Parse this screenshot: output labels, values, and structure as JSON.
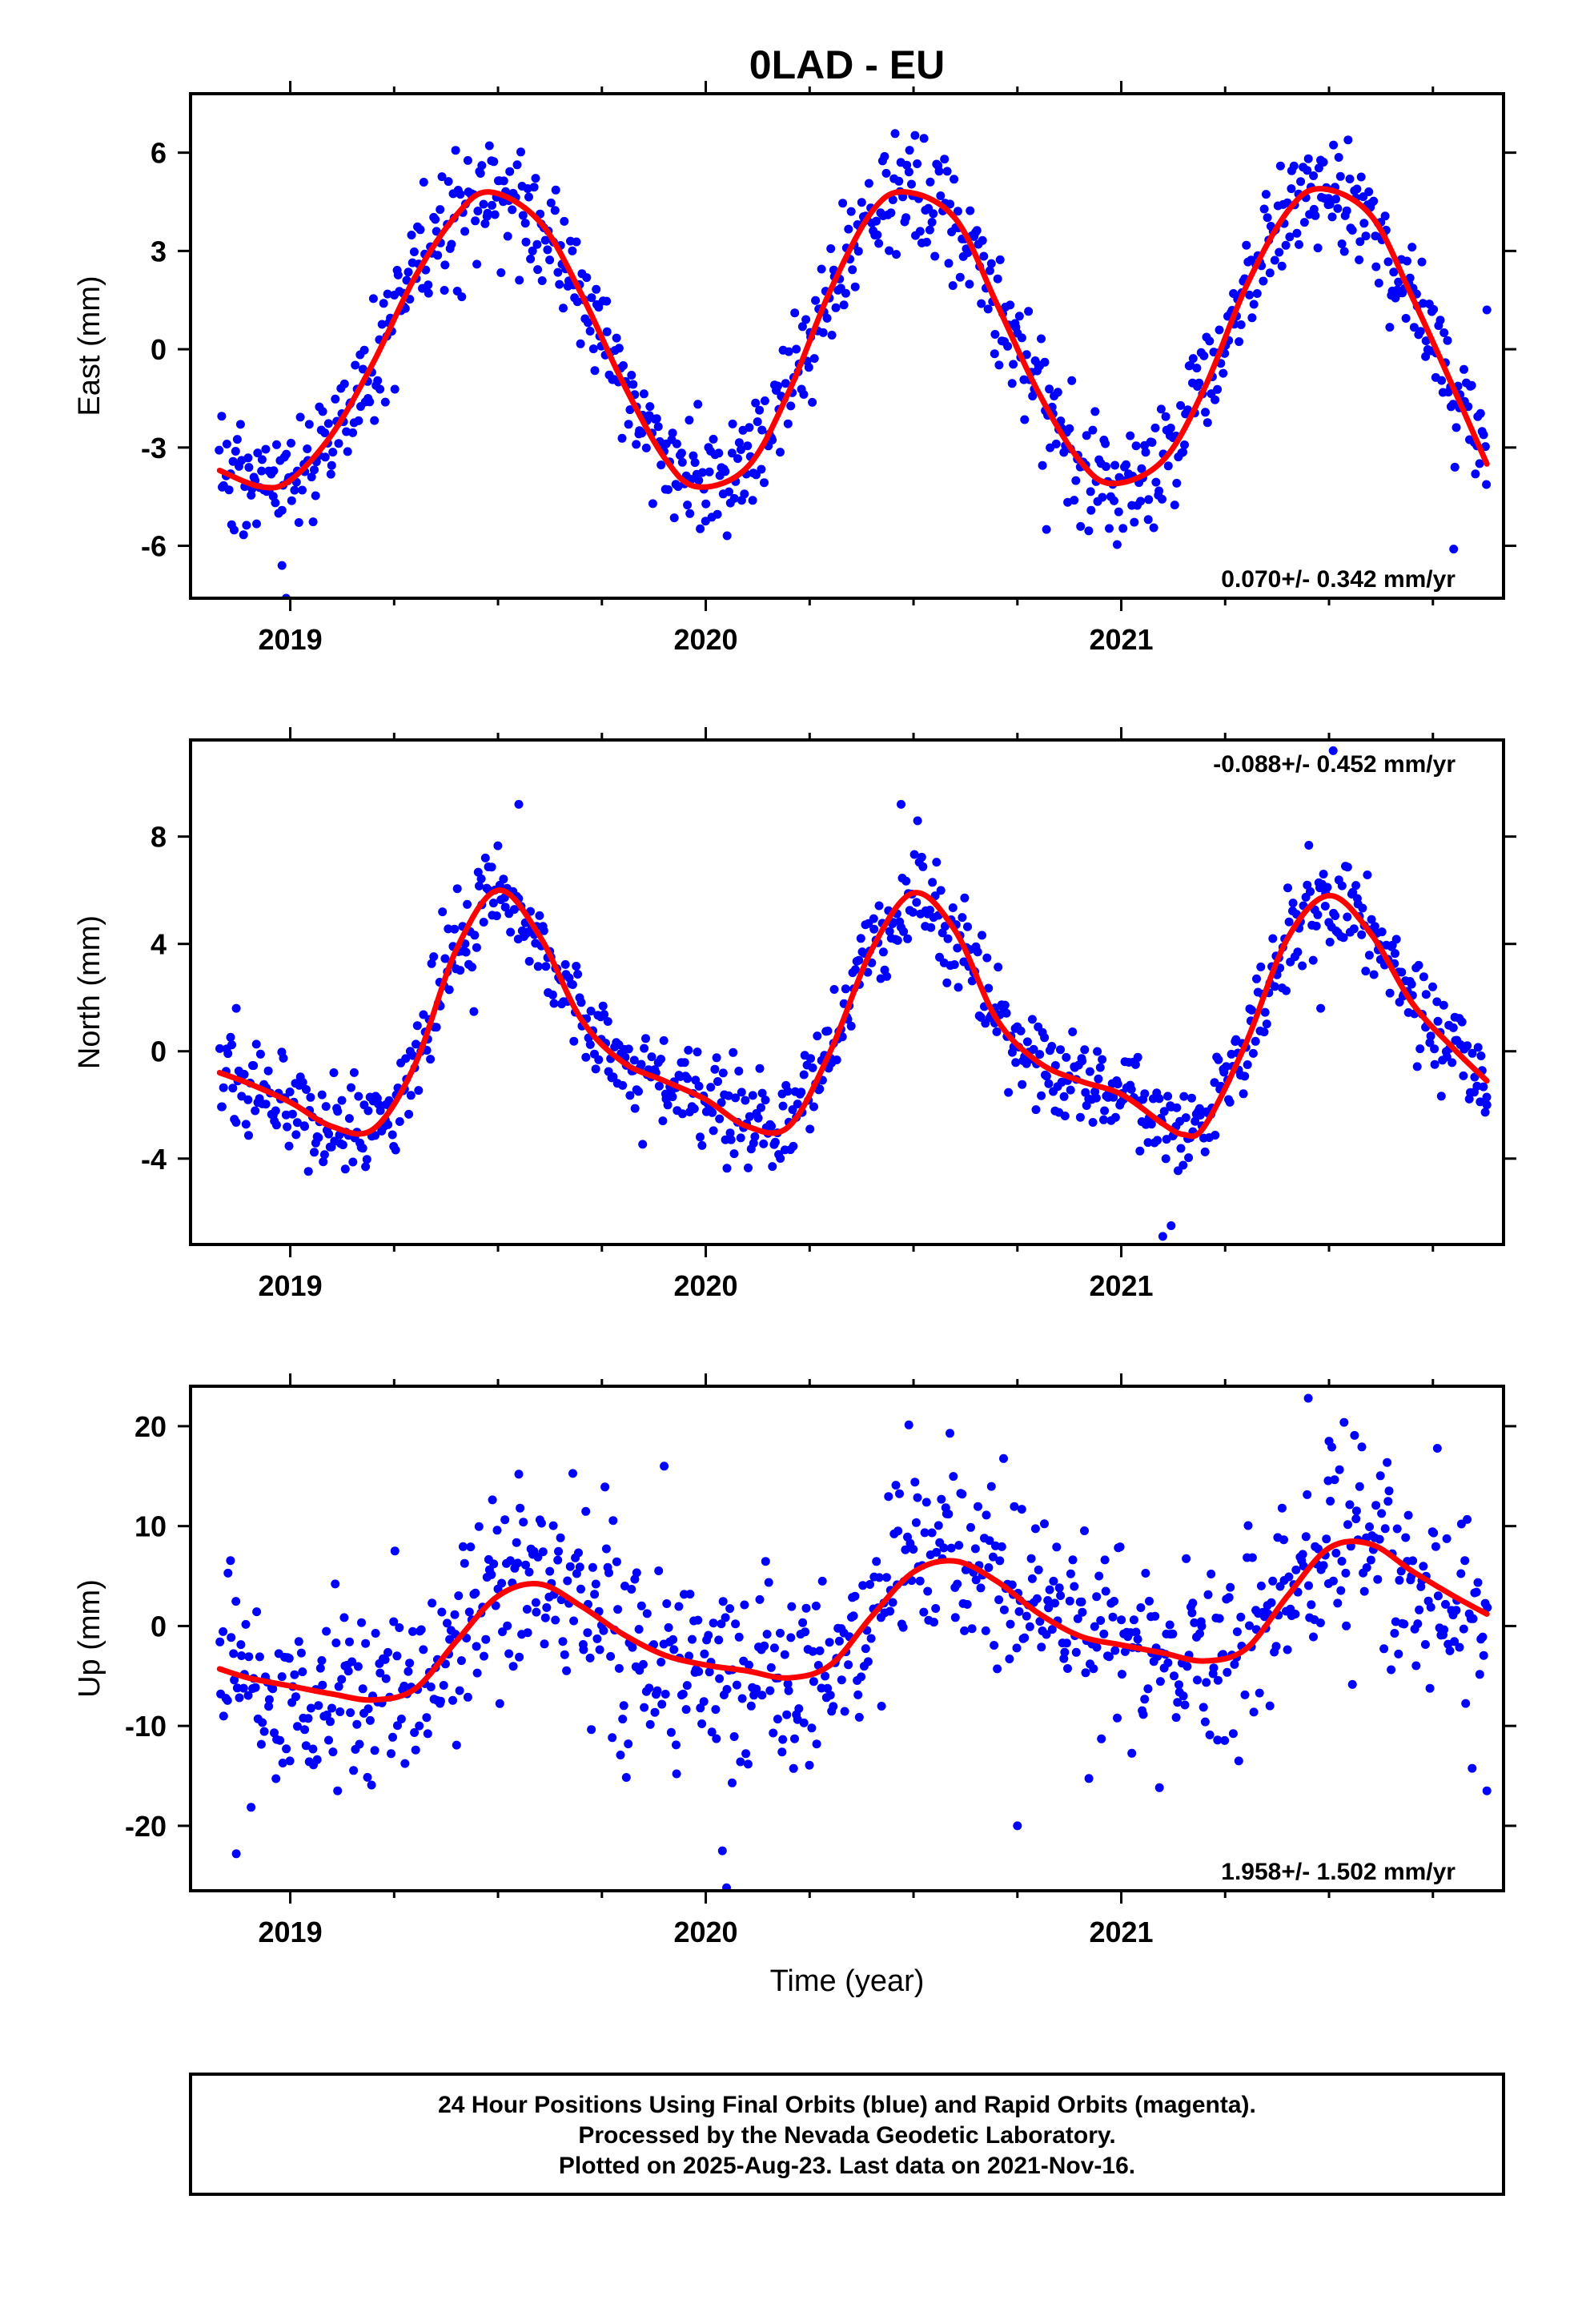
{
  "title": "0LAD - EU",
  "xlabel": "Time (year)",
  "footer": {
    "line1": "24 Hour Positions Using Final Orbits (blue) and Rapid Orbits (magenta).",
    "line2": "Processed by the Nevada Geodetic Laboratory.",
    "line3": "Plotted on 2025-Aug-23. Last data on 2021-Nov-16."
  },
  "colors": {
    "points": "#0000ff",
    "fit": "#ff0000",
    "frame": "#000000"
  },
  "chart_data": [
    {
      "type": "scatter",
      "component": "East",
      "ylabel": "East (mm)",
      "xlim": [
        2018.76,
        2021.92
      ],
      "ylim": [
        -7.6,
        7.8
      ],
      "xticks": [
        2019,
        2020,
        2021
      ],
      "yticks": [
        -6,
        -3,
        0,
        3,
        6
      ],
      "rate": "0.070+/- 0.342 mm/yr",
      "rate_position": "bottom-right",
      "series": [
        {
          "kind": "points",
          "noise": 0.9,
          "x_start": 2018.83,
          "x_end": 2021.88,
          "count": 860,
          "outliers": [
            [
              2018.99,
              -7.6
            ],
            [
              2018.98,
              -6.6
            ],
            [
              2020.82,
              -5.5
            ],
            [
              2021.8,
              -6.1
            ],
            [
              2021.88,
              1.2
            ]
          ]
        },
        {
          "kind": "fit",
          "x": [
            2018.83,
            2018.93,
            2019.0,
            2019.1,
            2019.2,
            2019.3,
            2019.4,
            2019.48,
            2019.6,
            2019.7,
            2019.8,
            2019.9,
            2019.98,
            2020.1,
            2020.2,
            2020.3,
            2020.4,
            2020.48,
            2020.6,
            2020.7,
            2020.8,
            2020.9,
            2020.98,
            2021.1,
            2021.2,
            2021.3,
            2021.4,
            2021.48,
            2021.6,
            2021.7,
            2021.8,
            2021.88
          ],
          "y": [
            -3.7,
            -4.2,
            -4.0,
            -2.6,
            -0.4,
            2.2,
            4.1,
            4.8,
            3.9,
            1.7,
            -1.0,
            -3.3,
            -4.2,
            -3.6,
            -1.3,
            1.8,
            4.2,
            4.8,
            4.0,
            1.4,
            -1.3,
            -3.4,
            -4.1,
            -3.4,
            -1.2,
            1.9,
            4.2,
            4.9,
            4.1,
            1.6,
            -1.2,
            -3.5
          ]
        }
      ]
    },
    {
      "type": "scatter",
      "component": "North",
      "ylabel": "North (mm)",
      "xlim": [
        2018.76,
        2021.92
      ],
      "ylim": [
        -7.2,
        11.6
      ],
      "xticks": [
        2019,
        2020,
        2021
      ],
      "yticks": [
        -4,
        0,
        4,
        8
      ],
      "rate": "-0.088+/- 0.452 mm/yr",
      "rate_position": "top-right",
      "series": [
        {
          "kind": "points",
          "noise": 0.9,
          "x_start": 2018.83,
          "x_end": 2021.88,
          "count": 860,
          "outliers": [
            [
              2019.55,
              9.2
            ],
            [
              2020.47,
              9.2
            ],
            [
              2021.1,
              -6.9
            ],
            [
              2021.12,
              -6.5
            ],
            [
              2021.88,
              -2.0
            ],
            [
              2018.87,
              1.6
            ],
            [
              2021.48,
              1.6
            ],
            [
              2021.51,
              11.2
            ]
          ]
        },
        {
          "kind": "fit",
          "x": [
            2018.83,
            2018.9,
            2019.0,
            2019.1,
            2019.2,
            2019.3,
            2019.4,
            2019.5,
            2019.6,
            2019.7,
            2019.8,
            2019.9,
            2020.0,
            2020.1,
            2020.2,
            2020.3,
            2020.4,
            2020.5,
            2020.6,
            2020.7,
            2020.8,
            2020.9,
            2021.0,
            2021.1,
            2021.15,
            2021.2,
            2021.3,
            2021.4,
            2021.5,
            2021.6,
            2021.7,
            2021.8,
            2021.88
          ],
          "y": [
            -0.8,
            -1.2,
            -1.9,
            -2.8,
            -2.9,
            -0.5,
            3.8,
            6.0,
            4.3,
            1.2,
            -0.4,
            -1.1,
            -1.8,
            -2.8,
            -2.8,
            0.0,
            3.8,
            5.9,
            4.5,
            1.2,
            -0.4,
            -1.1,
            -1.6,
            -2.7,
            -3.1,
            -2.8,
            0.3,
            4.2,
            5.8,
            4.4,
            1.8,
            0.1,
            -1.1
          ]
        }
      ]
    },
    {
      "type": "scatter",
      "component": "Up",
      "ylabel": "Up (mm)",
      "xlim": [
        2018.76,
        2021.92
      ],
      "ylim": [
        -26.5,
        24
      ],
      "xticks": [
        2019,
        2020,
        2021
      ],
      "yticks": [
        -20,
        -10,
        0,
        10,
        20
      ],
      "rate": "1.958+/- 1.502 mm/yr",
      "rate_position": "bottom-right",
      "series": [
        {
          "kind": "points",
          "noise": 4.8,
          "x_start": 2018.83,
          "x_end": 2021.88,
          "count": 860,
          "outliers": [
            [
              2020.05,
              -26.2
            ],
            [
              2020.04,
              -22.5
            ],
            [
              2021.45,
              22.8
            ],
            [
              2018.87,
              -22.8
            ],
            [
              2019.55,
              15.2
            ],
            [
              2019.9,
              16.0
            ],
            [
              2020.75,
              -20.0
            ],
            [
              2021.88,
              -16.5
            ],
            [
              2021.5,
              18.5
            ]
          ]
        },
        {
          "kind": "fit",
          "x": [
            2018.83,
            2018.9,
            2019.0,
            2019.1,
            2019.2,
            2019.3,
            2019.4,
            2019.5,
            2019.6,
            2019.7,
            2019.8,
            2019.9,
            2020.0,
            2020.1,
            2020.2,
            2020.3,
            2020.4,
            2020.5,
            2020.6,
            2020.7,
            2020.8,
            2020.9,
            2021.0,
            2021.1,
            2021.2,
            2021.3,
            2021.4,
            2021.5,
            2021.6,
            2021.7,
            2021.8,
            2021.88
          ],
          "y": [
            -4.3,
            -5.2,
            -6.0,
            -6.8,
            -7.4,
            -6.3,
            -1.5,
            3.0,
            4.2,
            2.0,
            -0.8,
            -2.9,
            -3.9,
            -4.5,
            -5.2,
            -3.9,
            1.0,
            5.4,
            6.5,
            4.5,
            1.3,
            -1.0,
            -1.9,
            -2.7,
            -3.5,
            -2.3,
            3.0,
            7.8,
            8.2,
            5.5,
            3.0,
            1.2
          ]
        }
      ]
    }
  ]
}
